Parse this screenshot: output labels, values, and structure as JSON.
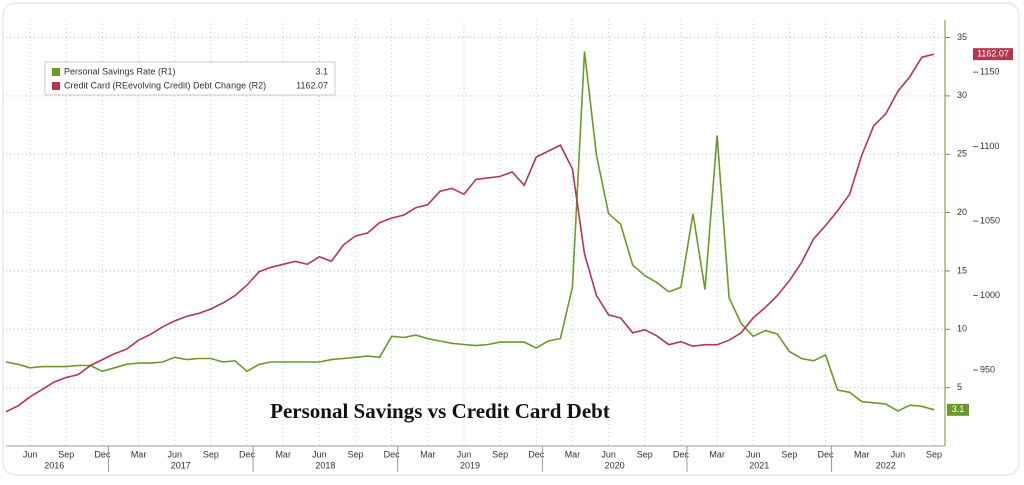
{
  "chart_data": {
    "type": "line",
    "title": "Personal Savings vs Credit Card Debt",
    "categories": [
      null,
      null,
      "Jun",
      null,
      null,
      "Sep",
      null,
      null,
      "Dec",
      null,
      null,
      "Mar",
      null,
      null,
      "Jun",
      null,
      null,
      "Sep",
      null,
      null,
      "Dec",
      null,
      null,
      "Mar",
      null,
      null,
      "Jun",
      null,
      null,
      "Sep",
      null,
      null,
      "Dec",
      null,
      null,
      "Mar",
      null,
      null,
      "Jun",
      null,
      null,
      "Sep",
      null,
      null,
      "Dec",
      null,
      null,
      "Mar",
      null,
      null,
      "Jun",
      null,
      null,
      "Sep",
      null,
      null,
      "Dec",
      null,
      null,
      "Mar",
      null,
      null,
      "Jun",
      null,
      null,
      "Sep",
      null,
      null,
      "Dec",
      null,
      null,
      "Mar",
      null,
      null,
      "Jun",
      null,
      null,
      "Sep"
    ],
    "year_labels": [
      "2016",
      "2017",
      "2018",
      "2019",
      "2020",
      "2021",
      "2022"
    ],
    "series": [
      {
        "name": "Personal Savings Rate (R1)",
        "color": "#6b9a2a",
        "axis": "y",
        "values": [
          7.2,
          7.0,
          6.7,
          6.8,
          6.8,
          6.8,
          6.9,
          6.9,
          6.4,
          6.7,
          7.0,
          7.1,
          7.1,
          7.2,
          7.6,
          7.4,
          7.5,
          7.5,
          7.2,
          7.3,
          6.4,
          7.0,
          7.2,
          7.2,
          7.2,
          7.2,
          7.2,
          7.4,
          7.5,
          7.6,
          7.7,
          7.6,
          9.4,
          9.3,
          9.5,
          9.2,
          9.0,
          8.8,
          8.7,
          8.6,
          8.7,
          8.9,
          8.9,
          8.9,
          8.4,
          9.0,
          9.2,
          13.6,
          33.8,
          24.9,
          19.9,
          19.0,
          15.5,
          14.6,
          14.0,
          13.2,
          13.6,
          19.9,
          13.4,
          26.6,
          12.7,
          10.5,
          9.4,
          9.9,
          9.6,
          8.1,
          7.5,
          7.3,
          7.8,
          4.8,
          4.6,
          3.8,
          3.7,
          3.6,
          3.0,
          3.5,
          3.4,
          3.1
        ]
      },
      {
        "name": "Credit Card (REevolving Credit) Debt Change (R2)",
        "color": "#b5374f",
        "axis": "y2",
        "values": [
          922,
          926,
          932,
          937,
          942,
          945,
          947,
          953,
          957,
          961,
          964,
          970,
          974,
          979,
          983,
          986,
          988,
          991,
          995,
          1000,
          1007,
          1016,
          1019,
          1021,
          1023,
          1021,
          1026,
          1023,
          1034,
          1040,
          1042,
          1049,
          1052,
          1054,
          1059,
          1061,
          1070,
          1072,
          1068,
          1078,
          1079,
          1080,
          1083,
          1074,
          1093,
          1097,
          1101,
          1085,
          1028,
          1000,
          987,
          985,
          975,
          977,
          973,
          967,
          969,
          966,
          967,
          967,
          970,
          975,
          985,
          992,
          1000,
          1010,
          1022,
          1038,
          1047,
          1057,
          1068,
          1094,
          1114,
          1122,
          1137,
          1147,
          1160,
          1162.07
        ]
      }
    ],
    "ylim": [
      0,
      36.5
    ],
    "yticks": [
      5,
      10,
      15,
      20,
      25,
      30,
      35
    ],
    "y2lim": [
      899,
      1185
    ],
    "y2ticks": [
      950,
      1000,
      1050,
      1100,
      1150
    ],
    "grid": true,
    "legend": "upper left"
  }
}
